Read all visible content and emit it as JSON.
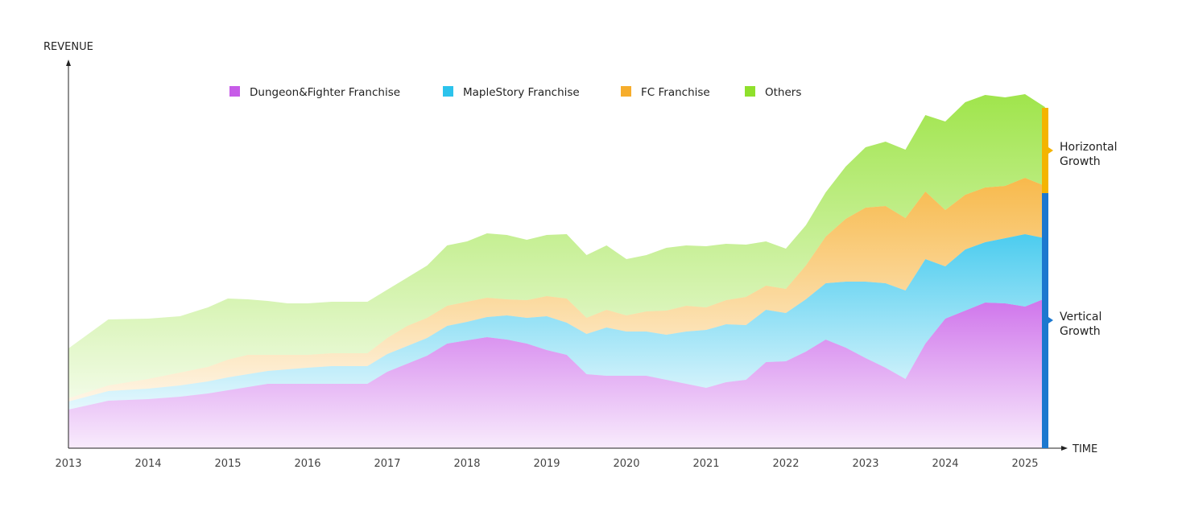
{
  "chart_data": {
    "type": "area",
    "stacked": true,
    "y_axis_label": "REVENUE",
    "x_axis_label": "TIME",
    "x_ticks": [
      "2013",
      "2014",
      "2015",
      "2016",
      "2017",
      "2018",
      "2019",
      "2020",
      "2021",
      "2022",
      "2023",
      "2024",
      "2025"
    ],
    "x_range": [
      2013,
      2025.25
    ],
    "y_range": [
      0,
      440
    ],
    "y_scale_note": "no numeric y-axis values printed; values are relative readings",
    "grid": false,
    "legend_position": "top",
    "x": [
      2013,
      2013.5,
      2014,
      2014.4,
      2014.75,
      2015,
      2015.25,
      2015.5,
      2015.75,
      2016,
      2016.3,
      2016.75,
      2017,
      2017.25,
      2017.5,
      2017.75,
      2018,
      2018.25,
      2018.5,
      2018.75,
      2019,
      2019.25,
      2019.5,
      2019.75,
      2020,
      2020.25,
      2020.5,
      2020.75,
      2021,
      2021.25,
      2021.5,
      2021.75,
      2022,
      2022.25,
      2022.5,
      2022.75,
      2023,
      2023.25,
      2023.5,
      2023.75,
      2024,
      2024.25,
      2024.5,
      2024.75,
      2025,
      2025.25
    ],
    "series": [
      {
        "name": "Dungeon&Fighter Franchise",
        "color": "#c75ce8",
        "values": [
          48,
          59,
          61,
          64,
          68,
          72,
          76,
          80,
          80,
          80,
          80,
          80,
          95,
          105,
          115,
          130,
          134,
          138,
          135,
          130,
          122,
          116,
          92,
          90,
          90,
          90,
          85,
          80,
          75,
          82,
          85,
          107,
          108,
          120,
          135,
          125,
          112,
          100,
          86,
          130,
          161,
          171,
          181,
          180,
          176,
          186
        ]
      },
      {
        "name": "MapleStory Franchise",
        "color": "#2cc3ec",
        "values": [
          10,
          12,
          13,
          14,
          15,
          16,
          16,
          16,
          18,
          20,
          22,
          22,
          22,
          22,
          22,
          22,
          23,
          25,
          30,
          32,
          42,
          40,
          50,
          60,
          55,
          55,
          56,
          65,
          72,
          72,
          68,
          65,
          60,
          65,
          70,
          82,
          95,
          105,
          110,
          105,
          65,
          76,
          75,
          81,
          90,
          75
        ]
      },
      {
        "name": "FC Franchise",
        "color": "#f6ad2c",
        "values": [
          4,
          7,
          12,
          16,
          18,
          22,
          24,
          20,
          18,
          16,
          16,
          16,
          20,
          25,
          25,
          25,
          25,
          24,
          20,
          22,
          25,
          30,
          20,
          22,
          20,
          25,
          30,
          32,
          28,
          30,
          35,
          30,
          30,
          42,
          58,
          78,
          92,
          96,
          90,
          84,
          70,
          68,
          68,
          65,
          70,
          65
        ]
      },
      {
        "name": "Others",
        "color": "#8fe02c",
        "values": [
          62,
          82,
          75,
          70,
          74,
          76,
          69,
          67,
          64,
          64,
          64,
          64,
          60,
          60,
          65,
          75,
          75,
          80,
          80,
          75,
          76,
          80,
          78,
          80,
          70,
          70,
          78,
          75,
          76,
          70,
          65,
          55,
          50,
          50,
          55,
          65,
          75,
          80,
          85,
          95,
          110,
          115,
          115,
          110,
          104,
          98
        ]
      }
    ],
    "annotations": [
      {
        "label": "Horizontal\nGrowth",
        "color": "#f4b400"
      },
      {
        "label": "Vertical\nGrowth",
        "color": "#1c78cf"
      }
    ]
  }
}
